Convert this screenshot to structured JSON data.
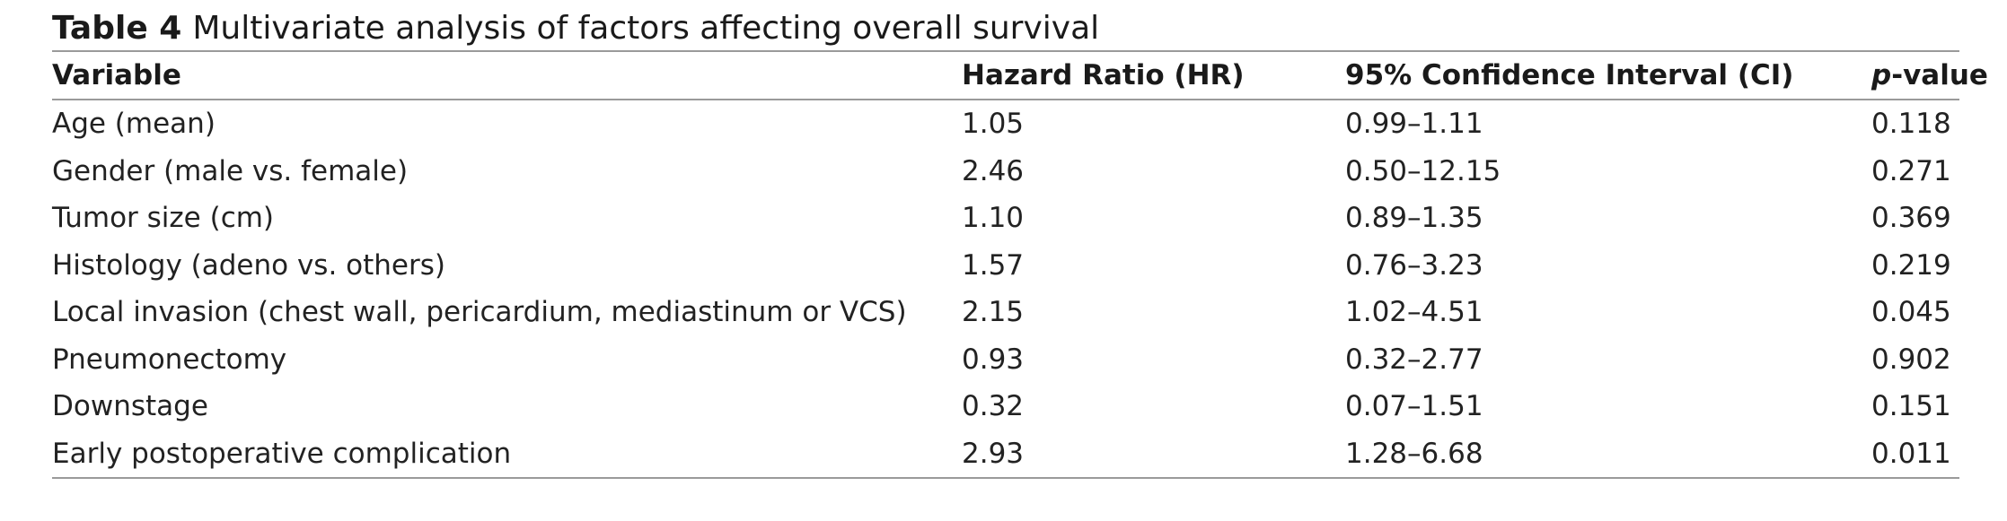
{
  "caption": {
    "label": "Table 4",
    "title": "Multivariate analysis of factors affecting overall survival"
  },
  "headers": {
    "variable": "Variable",
    "hr": "Hazard Ratio (HR)",
    "ci": "95% Confidence Interval (CI)",
    "p_italic": "p",
    "p_rest": "-value"
  },
  "rows": [
    {
      "variable": "Age (mean)",
      "hr": "1.05",
      "ci": "0.99–1.11",
      "p": "0.118"
    },
    {
      "variable": "Gender (male vs. female)",
      "hr": "2.46",
      "ci": "0.50–12.15",
      "p": "0.271"
    },
    {
      "variable": "Tumor size (cm)",
      "hr": "1.10",
      "ci": "0.89–1.35",
      "p": "0.369"
    },
    {
      "variable": "Histology (adeno vs. others)",
      "hr": "1.57",
      "ci": "0.76–3.23",
      "p": "0.219"
    },
    {
      "variable": "Local invasion (chest wall, pericardium, mediastinum or VCS)",
      "hr": "2.15",
      "ci": "1.02–4.51",
      "p": "0.045"
    },
    {
      "variable": "Pneumonectomy",
      "hr": "0.93",
      "ci": "0.32–2.77",
      "p": "0.902"
    },
    {
      "variable": "Downstage",
      "hr": "0.32",
      "ci": "0.07–1.51",
      "p": "0.151"
    },
    {
      "variable": "Early postoperative complication",
      "hr": "2.93",
      "ci": "1.28–6.68",
      "p": "0.011"
    }
  ]
}
